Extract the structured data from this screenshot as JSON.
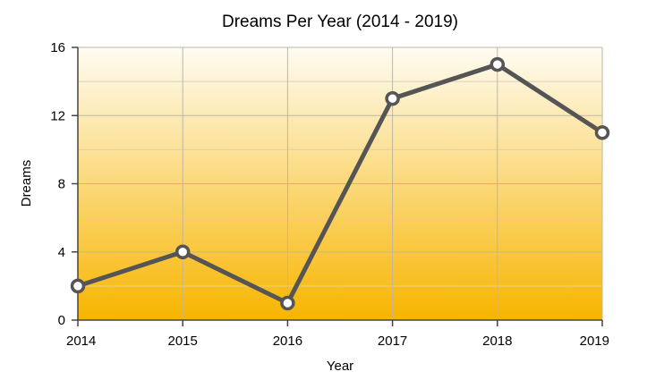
{
  "chart_data": {
    "type": "line",
    "title": "Dreams Per Year (2014 - 2019)",
    "xlabel": "Year",
    "ylabel": "Dreams",
    "x": [
      "2014",
      "2015",
      "2016",
      "2017",
      "2018",
      "2019"
    ],
    "series": [
      {
        "values": [
          2,
          4,
          1,
          13,
          15,
          11
        ]
      }
    ],
    "ylim": [
      0,
      16
    ],
    "yticks": [
      "0",
      "4",
      "8",
      "12",
      "16"
    ],
    "grid": true,
    "background_gradient": [
      "#fefcf3",
      "#f8b500"
    ],
    "line_color": "#555555",
    "marker_fill": "#ffffff"
  }
}
